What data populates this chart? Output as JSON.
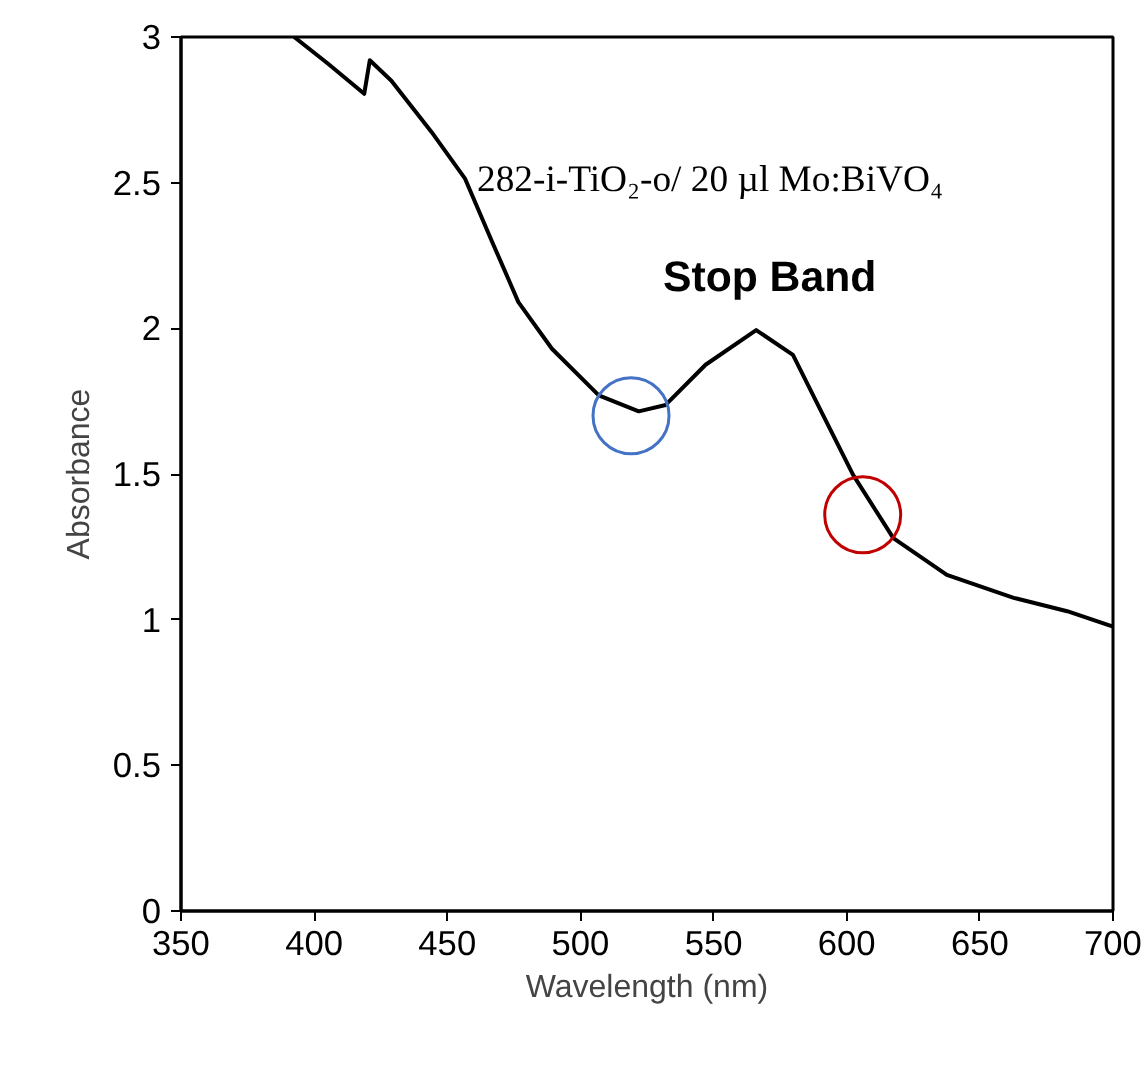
{
  "chart_data": {
    "type": "line",
    "xlabel": "Wavelength (nm)",
    "ylabel": "Absorbance",
    "annotations": [
      "282-i-TiO₂-o/ 20 µl Mo:BiVO₄",
      "Stop Band"
    ],
    "x": [
      392.5,
      405,
      418.8,
      420.9,
      429,
      444,
      456.6,
      466.7,
      476.7,
      489.3,
      506.9,
      521.9,
      532,
      547,
      566,
      579.8,
      589.8,
      602.4,
      617.5,
      637.6,
      662.7,
      682.8,
      700
    ],
    "series": [
      {
        "color": "#000000",
        "values": [
          3.0,
          2.91,
          2.805,
          2.92,
          2.85,
          2.675,
          2.515,
          2.3,
          2.09,
          1.93,
          1.77,
          1.715,
          1.737,
          1.875,
          1.994,
          1.909,
          1.726,
          1.497,
          1.28,
          1.154,
          1.075,
          1.029,
          0.976
        ]
      },
      {
        "type": "scatter",
        "marker": "circle",
        "x": [
          519,
          606
        ],
        "colors": [
          "#4472c4",
          "#c00000"
        ],
        "values": [
          1.7,
          1.36
        ]
      }
    ],
    "xlim": [
      350,
      700
    ],
    "ylim": [
      0,
      3
    ],
    "xticks": [
      350,
      400,
      450,
      500,
      550,
      600,
      650,
      700
    ],
    "yticks": [
      0,
      {
        "value": 0.5,
        "label": "0.5"
      },
      1,
      {
        "value": 1.5,
        "label": "1.5"
      },
      2,
      {
        "value": 2.5,
        "label": "2.5"
      },
      3
    ],
    "grid": false,
    "marker": "none",
    "line_style": "solid"
  }
}
